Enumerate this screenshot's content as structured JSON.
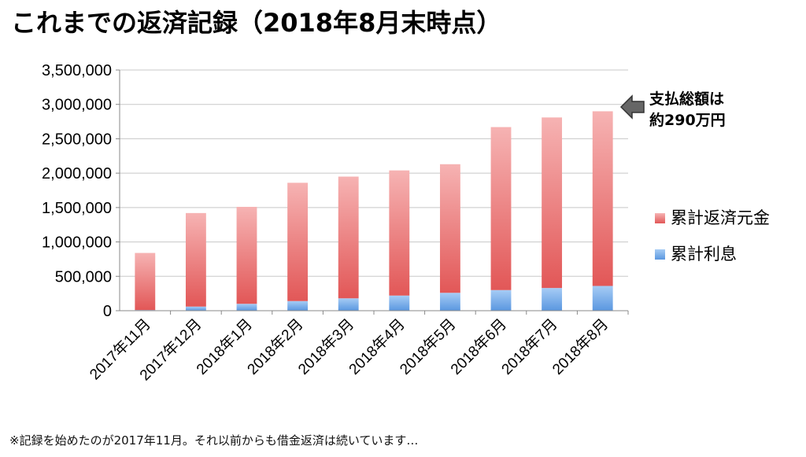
{
  "title": "これまでの返済記録（2018年8月末時点）",
  "footnote": "※記録を始めたのが2017年11月。それ以前からも借金返済は続いています…",
  "annotation": {
    "line1": "支払総額は",
    "line2": "約290万円"
  },
  "chart_data": {
    "type": "bar",
    "stacked": true,
    "categories": [
      "2017年11月",
      "2017年12月",
      "2018年1月",
      "2018年2月",
      "2018年3月",
      "2018年4月",
      "2018年5月",
      "2018年6月",
      "2018年7月",
      "2018年8月"
    ],
    "series": [
      {
        "name": "累計利息",
        "color": "#7aaee8",
        "values": [
          10000,
          60000,
          100000,
          140000,
          180000,
          220000,
          260000,
          300000,
          330000,
          360000
        ]
      },
      {
        "name": "累計返済元金",
        "color": "#e46a6a",
        "values": [
          830000,
          1360000,
          1410000,
          1720000,
          1770000,
          1820000,
          1870000,
          2370000,
          2480000,
          2540000
        ]
      }
    ],
    "ylim": [
      0,
      3500000
    ],
    "yticks": [
      "0",
      "500,000",
      "1,000,000",
      "1,500,000",
      "2,000,000",
      "2,500,000",
      "3,000,000",
      "3,500,000"
    ],
    "grid": true,
    "legend": "right"
  }
}
